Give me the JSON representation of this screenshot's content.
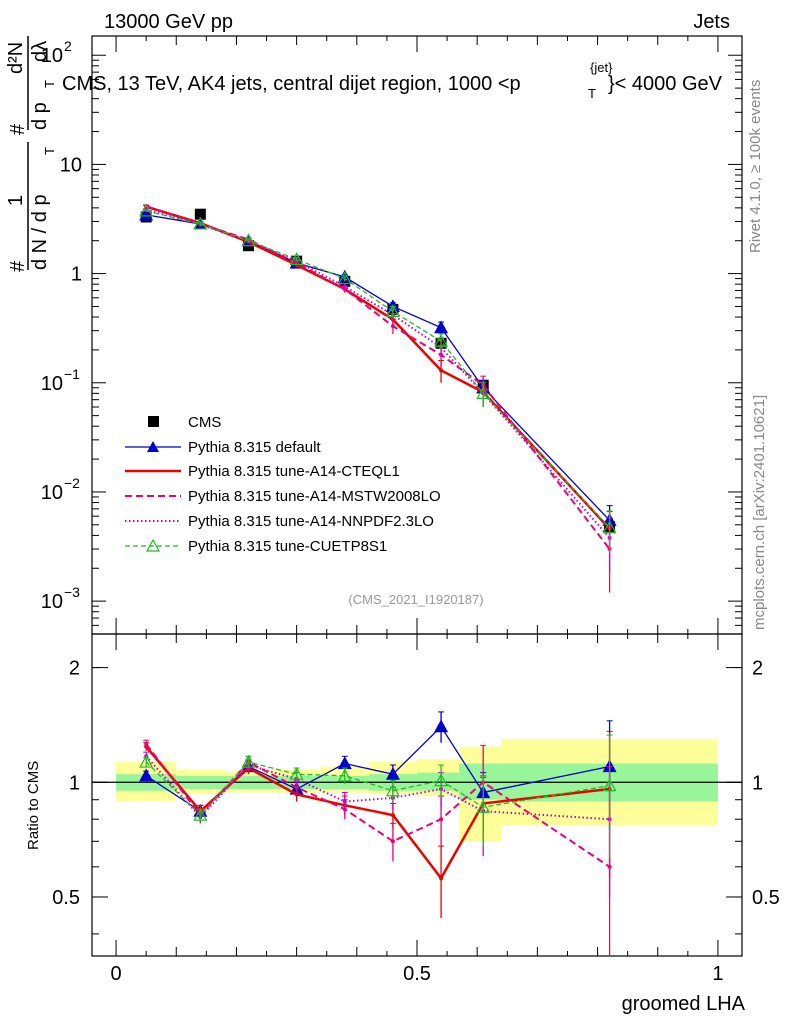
{
  "header": {
    "left_label": "13000 GeV pp",
    "right_label": "Jets",
    "title": "CMS, 13 TeV, AK4 jets, central dijet region, 1000 <p",
    "title_sup": "{jet}",
    "title_sub": "T",
    "title_end": "}< 4000 GeV",
    "side_label_top": "Rivet 4.1.0, ≥ 100k events",
    "side_label_bottom": "mcplots.cern.ch [arXiv:2401.10621]",
    "analysis_id": "(CMS_2021_I1920187)"
  },
  "colors": {
    "cms": "#000000",
    "default": "#0000cc",
    "cteql1": "#ee0000",
    "mstw": "#ee0077",
    "nnpdf": "#cc00cc",
    "cuetp": "#22bb22",
    "band_inner": "#99f599",
    "band_outer": "#ffff99"
  },
  "chart_data": [
    {
      "type": "line",
      "name": "main",
      "yscale": "log",
      "ylim": [
        0.0005,
        150
      ],
      "xlim": [
        -0.04,
        1.04
      ],
      "ylabel": "# 1/(d N / d pT) # d²N/(d pT dλ)",
      "ylabel_parts": {
        "hash1": "#",
        "one": "1",
        "den": "d N / d p",
        "sub_t": "T",
        "hash2": "#",
        "num": "d²N",
        "den2": "d p",
        "sub_t2": "T",
        "dlambda": "dλ"
      },
      "yticks": [
        {
          "value": 0.001,
          "base": "10",
          "exp": "−3"
        },
        {
          "value": 0.01,
          "base": "10",
          "exp": "−2"
        },
        {
          "value": 0.1,
          "base": "10",
          "exp": "−1"
        },
        {
          "value": 1,
          "label": "1"
        },
        {
          "value": 10,
          "label": "10"
        },
        {
          "value": 100,
          "base": "10",
          "exp": "2"
        }
      ],
      "x": [
        0.05,
        0.14,
        0.22,
        0.3,
        0.38,
        0.46,
        0.54,
        0.61,
        0.82
      ],
      "series": [
        {
          "key": "cms",
          "name": "CMS",
          "values": [
            3.3,
            3.5,
            1.8,
            1.3,
            0.85,
            0.47,
            0.23,
            0.095,
            0.0048
          ]
        },
        {
          "key": "default",
          "name": "Pythia 8.315 default",
          "values": [
            3.45,
            2.85,
            2.0,
            1.25,
            0.93,
            0.5,
            0.32,
            0.09,
            0.0055
          ],
          "err": [
            0.1,
            0.1,
            0.08,
            0.06,
            0.05,
            0.04,
            0.04,
            0.015,
            0.002
          ]
        },
        {
          "key": "cteql1",
          "name": "Pythia 8.315 tune-A14-CTEQL1",
          "values": [
            4.1,
            2.9,
            1.95,
            1.2,
            0.72,
            0.38,
            0.13,
            0.082,
            0.0046
          ],
          "err": [
            0.1,
            0.1,
            0.08,
            0.06,
            0.05,
            0.05,
            0.03,
            0.02,
            0.002
          ]
        },
        {
          "key": "mstw",
          "name": "Pythia 8.315 tune-A14-MSTW2008LO",
          "values": [
            4.15,
            2.85,
            2.05,
            1.25,
            0.72,
            0.33,
            0.18,
            0.095,
            0.003
          ],
          "err": [
            0.1,
            0.1,
            0.08,
            0.06,
            0.05,
            0.05,
            0.04,
            0.02,
            0.0018
          ]
        },
        {
          "key": "nnpdf",
          "name": "Pythia 8.315 tune-A14-NNPDF2.3LO",
          "values": [
            3.85,
            2.8,
            2.0,
            1.3,
            0.76,
            0.42,
            0.21,
            0.08,
            0.0038
          ],
          "err": [
            0.1,
            0.1,
            0.08,
            0.06,
            0.05,
            0.05,
            0.04,
            0.02,
            0.002
          ]
        },
        {
          "key": "cuetp",
          "name": "Pythia 8.315 tune-CUETP8S1",
          "values": [
            3.75,
            2.85,
            2.0,
            1.35,
            0.9,
            0.45,
            0.24,
            0.08,
            0.0047
          ],
          "err": [
            0.1,
            0.1,
            0.08,
            0.06,
            0.05,
            0.05,
            0.04,
            0.02,
            0.002
          ]
        }
      ]
    },
    {
      "type": "line",
      "name": "ratio",
      "yscale": "log",
      "ylim": [
        0.35,
        2.45
      ],
      "xlim": [
        -0.04,
        1.04
      ],
      "xlabel": "groomed LHA",
      "ylabel": "Ratio to CMS",
      "yticks": [
        {
          "value": 0.5,
          "label": "0.5"
        },
        {
          "value": 1,
          "label": "1"
        },
        {
          "value": 2,
          "label": "2"
        }
      ],
      "xticks": [
        {
          "value": 0,
          "label": "0"
        },
        {
          "value": 0.5,
          "label": "0.5"
        },
        {
          "value": 1,
          "label": "1"
        }
      ],
      "bands": [
        {
          "x0": 0.0,
          "x1": 0.1,
          "inner": [
            0.95,
            1.05
          ],
          "outer": [
            0.89,
            1.13
          ]
        },
        {
          "x0": 0.1,
          "x1": 0.18,
          "inner": [
            0.96,
            1.04
          ],
          "outer": [
            0.93,
            1.08
          ]
        },
        {
          "x0": 0.18,
          "x1": 0.26,
          "inner": [
            0.96,
            1.04
          ],
          "outer": [
            0.94,
            1.07
          ]
        },
        {
          "x0": 0.26,
          "x1": 0.34,
          "inner": [
            0.96,
            1.04
          ],
          "outer": [
            0.94,
            1.08
          ]
        },
        {
          "x0": 0.34,
          "x1": 0.42,
          "inner": [
            0.96,
            1.04
          ],
          "outer": [
            0.94,
            1.1
          ]
        },
        {
          "x0": 0.42,
          "x1": 0.5,
          "inner": [
            0.95,
            1.05
          ],
          "outer": [
            0.93,
            1.13
          ]
        },
        {
          "x0": 0.5,
          "x1": 0.57,
          "inner": [
            0.95,
            1.06
          ],
          "outer": [
            0.92,
            1.15
          ]
        },
        {
          "x0": 0.57,
          "x1": 0.64,
          "inner": [
            0.9,
            1.12
          ],
          "outer": [
            0.7,
            1.24
          ]
        },
        {
          "x0": 0.64,
          "x1": 1.0,
          "inner": [
            0.89,
            1.12
          ],
          "outer": [
            0.77,
            1.3
          ]
        }
      ],
      "x": [
        0.05,
        0.14,
        0.22,
        0.3,
        0.38,
        0.46,
        0.54,
        0.61,
        0.82
      ],
      "series": [
        {
          "key": "default",
          "values": [
            1.04,
            0.84,
            1.1,
            0.96,
            1.12,
            1.05,
            1.4,
            0.94,
            1.1
          ],
          "err": [
            0.03,
            0.03,
            0.04,
            0.04,
            0.05,
            0.06,
            0.13,
            0.12,
            0.35
          ]
        },
        {
          "key": "cteql1",
          "values": [
            1.24,
            0.84,
            1.09,
            0.93,
            0.87,
            0.82,
            0.56,
            0.88,
            0.96
          ],
          "err": [
            0.03,
            0.03,
            0.04,
            0.04,
            0.05,
            0.06,
            0.12,
            0.15,
            0.4
          ]
        },
        {
          "key": "mstw",
          "values": [
            1.26,
            0.82,
            1.13,
            0.97,
            0.85,
            0.7,
            0.8,
            1.0,
            0.6
          ],
          "err": [
            0.03,
            0.03,
            0.04,
            0.04,
            0.05,
            0.08,
            0.12,
            0.25,
            0.35
          ]
        },
        {
          "key": "nnpdf",
          "values": [
            1.17,
            0.81,
            1.11,
            1.02,
            0.89,
            0.91,
            0.96,
            0.84,
            0.8
          ],
          "err": [
            0.03,
            0.03,
            0.04,
            0.04,
            0.05,
            0.06,
            0.1,
            0.2,
            0.3
          ]
        },
        {
          "key": "cuetp",
          "values": [
            1.13,
            0.82,
            1.13,
            1.05,
            1.04,
            0.95,
            1.01,
            0.86,
            0.98
          ],
          "err": [
            0.03,
            0.03,
            0.04,
            0.04,
            0.05,
            0.06,
            0.1,
            0.18,
            0.35
          ]
        }
      ]
    }
  ]
}
